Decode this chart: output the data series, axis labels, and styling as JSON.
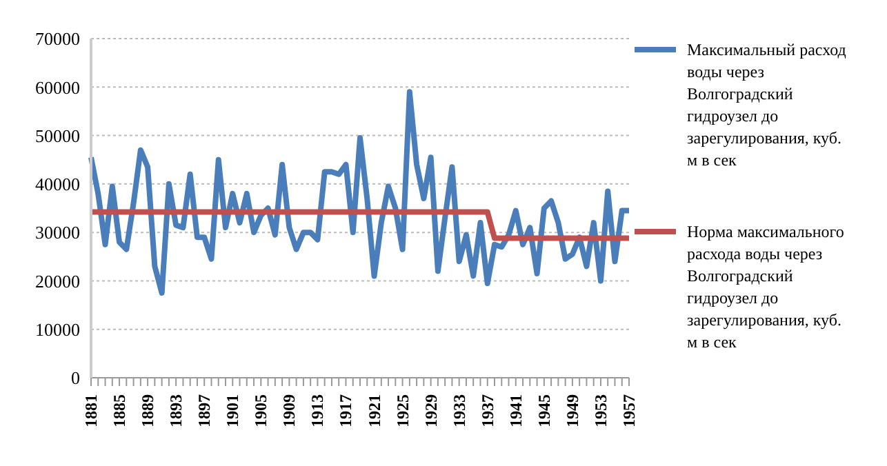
{
  "chart_data": {
    "type": "line",
    "categories": [
      "1881",
      null,
      null,
      null,
      "1885",
      null,
      null,
      null,
      "1889",
      null,
      null,
      null,
      "1893",
      null,
      null,
      null,
      "1897",
      null,
      null,
      null,
      "1901",
      null,
      null,
      null,
      "1905",
      null,
      null,
      null,
      "1909",
      null,
      null,
      null,
      "1913",
      null,
      null,
      null,
      "1917",
      null,
      null,
      null,
      "1921",
      null,
      null,
      null,
      "1925",
      null,
      null,
      null,
      "1929",
      null,
      null,
      null,
      "1933",
      null,
      null,
      null,
      "1937",
      null,
      null,
      null,
      "1941",
      null,
      null,
      null,
      "1945",
      null,
      null,
      null,
      "1949",
      null,
      null,
      null,
      "1953",
      null,
      null,
      null,
      "1957"
    ],
    "series": [
      {
        "name": "Максимальный расход воды через Волгоградский гидроузел до зарегулирования, куб. м в сек",
        "color": "#4a7ebb",
        "values": [
          45500,
          38000,
          27500,
          39500,
          28000,
          26500,
          36000,
          47000,
          43500,
          23000,
          17500,
          40000,
          31500,
          31000,
          42000,
          29000,
          29000,
          24500,
          45000,
          31000,
          38000,
          32000,
          38000,
          30000,
          33500,
          35000,
          29500,
          44000,
          31000,
          26500,
          30000,
          30000,
          28500,
          42500,
          42500,
          42000,
          44000,
          30000,
          49500,
          37000,
          21000,
          32000,
          39500,
          35000,
          26500,
          59000,
          44000,
          37000,
          45500,
          22000,
          33000,
          43500,
          24000,
          29500,
          21000,
          32000,
          19500,
          27500,
          27000,
          29500,
          34500,
          27500,
          31000,
          21500,
          35000,
          36500,
          32000,
          24500,
          25500,
          29000,
          23000,
          32000,
          20000,
          38500,
          24000,
          34500,
          34500
        ]
      },
      {
        "name": "Норма максимального расхода воды через Волгоградский гидроузел до зарегулирования, куб. м в сек",
        "color": "#c0504d",
        "values": [
          34200,
          34200,
          34200,
          34200,
          34200,
          34200,
          34200,
          34200,
          34200,
          34200,
          34200,
          34200,
          34200,
          34200,
          34200,
          34200,
          34200,
          34200,
          34200,
          34200,
          34200,
          34200,
          34200,
          34200,
          34200,
          34200,
          34200,
          34200,
          34200,
          34200,
          34200,
          34200,
          34200,
          34200,
          34200,
          34200,
          34200,
          34200,
          34200,
          34200,
          34200,
          34200,
          34200,
          34200,
          34200,
          34200,
          34200,
          34200,
          34200,
          34200,
          34200,
          34200,
          34200,
          34200,
          34200,
          34200,
          34200,
          28800,
          28800,
          28800,
          28800,
          28800,
          28800,
          28800,
          28800,
          28800,
          28800,
          28800,
          28800,
          28800,
          28800,
          28800,
          28800,
          28800,
          28800,
          28800,
          28800
        ]
      }
    ],
    "ylim": [
      0,
      70000
    ],
    "yticks": [
      0,
      10000,
      20000,
      30000,
      40000,
      50000,
      60000,
      70000
    ],
    "grid": "y",
    "legend": "right",
    "marker": "none",
    "line_style": "solid"
  }
}
